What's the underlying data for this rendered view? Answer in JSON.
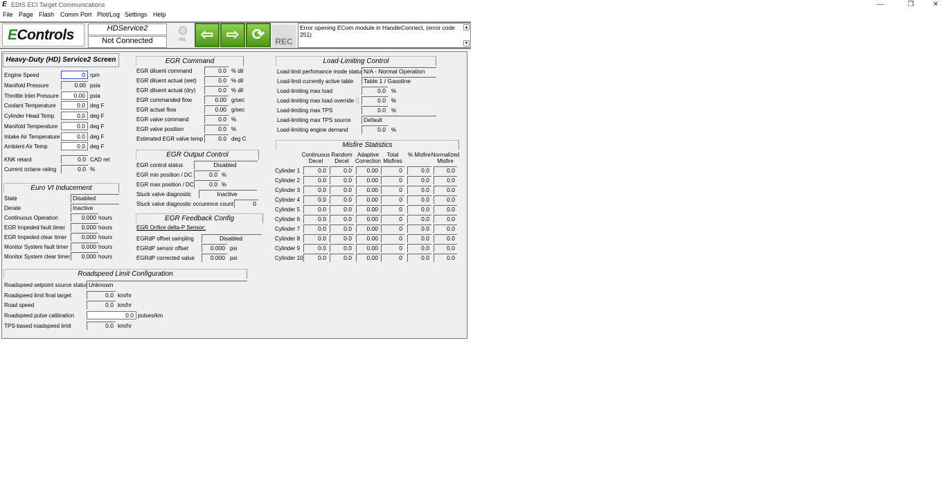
{
  "window": {
    "title": "EDIS ECI Target Communications",
    "controls": [
      "—",
      "❐",
      "✕"
    ]
  },
  "menu": [
    "File",
    "Page",
    "Flash",
    "Comm Port",
    "Plot/Log",
    "Settings",
    "Help"
  ],
  "toolbar": {
    "logo": "Controls",
    "service": "HDService2",
    "status": "Not Connected",
    "mil": "MIL",
    "rec": "REC",
    "error": "Error opening ECom module in HandleConnect, (error code 251)",
    "colors": {
      "accent": "#5aac22"
    },
    "icons": [
      "arrow-left-icon",
      "arrow-right-icon",
      "refresh-icon"
    ]
  },
  "screen_title": "Heavy-Duty (HD) Service2 Screen",
  "engine": [
    {
      "label": "Engine Speed",
      "value": "0",
      "unit": "rpm"
    },
    {
      "label": "Manifold Pressure",
      "value": "0.00",
      "unit": "psia"
    },
    {
      "label": "Throttle Inlet Pressure",
      "value": "0.00",
      "unit": "psia"
    },
    {
      "label": "Coolant Temperature",
      "value": "0.0",
      "unit": "deg F"
    },
    {
      "label": "Cylinder Head Temp",
      "value": "0.0",
      "unit": "deg F"
    },
    {
      "label": "Manifold Temperature",
      "value": "0.0",
      "unit": "deg F"
    },
    {
      "label": "Intake Air Temperature",
      "value": "0.0",
      "unit": "deg F"
    },
    {
      "label": "Ambient Air Temp",
      "value": "0.0",
      "unit": "deg F"
    },
    {
      "label": "KNK retard",
      "value": "0.0",
      "unit": "CAD ret"
    },
    {
      "label": "Current octane rating",
      "value": "0.0",
      "unit": "%"
    }
  ],
  "euro": {
    "title": "Euro VI Inducement",
    "rows": [
      {
        "label": "State",
        "value": "Disabled",
        "unit": ""
      },
      {
        "label": "Derate",
        "value": "Inactive",
        "unit": ""
      },
      {
        "label": "Continuous Operation",
        "value": "0.000",
        "unit": "hours"
      },
      {
        "label": "EGR Impeded fault timer",
        "value": "0.000",
        "unit": "hours"
      },
      {
        "label": "EGR Impeded clear timer",
        "value": "0.000",
        "unit": "hours"
      },
      {
        "label": "Monitor System fault timer",
        "value": "0.000",
        "unit": "hours"
      },
      {
        "label": "Monitor System clear timer",
        "value": "0.000",
        "unit": "hours"
      }
    ]
  },
  "egr_command": {
    "title": "EGR Command",
    "rows": [
      {
        "label": "EGR diluent command",
        "value": "0.0",
        "unit": "% dil"
      },
      {
        "label": "EGR diluent actual (wet)",
        "value": "0.0",
        "unit": "% dil"
      },
      {
        "label": "EGR diluent actual (dry)",
        "value": "0.0",
        "unit": "% dil"
      },
      {
        "label": "EGR commanded flow",
        "value": "0.00",
        "unit": "g/sec"
      },
      {
        "label": "EGR actual flow",
        "value": "0.00",
        "unit": "g/sec"
      },
      {
        "label": "EGR valve command",
        "value": "0.0",
        "unit": "%"
      },
      {
        "label": "EGR valve position",
        "value": "0.0",
        "unit": "%"
      },
      {
        "label": "Estimated EGR valve temp",
        "value": "0.0",
        "unit": "deg C"
      }
    ]
  },
  "egr_output": {
    "title": "EGR Output Control",
    "rows": [
      {
        "label": "EGR control status",
        "value": "Disabled",
        "unit": ""
      },
      {
        "label": "EGR min position / DC",
        "value": "0.0",
        "unit": "%"
      },
      {
        "label": "EGR max position / DC",
        "value": "0.0",
        "unit": "%"
      },
      {
        "label": "Stuck valve diagnostic",
        "value": "Inactive",
        "unit": ""
      },
      {
        "label": "Stuck valve diagnostic occurence count",
        "value": "0",
        "unit": ""
      }
    ]
  },
  "egr_feedback": {
    "title": "EGR Feedback Config",
    "subtitle": "EGR Orifice delta-P Sensor:",
    "rows": [
      {
        "label": "EGRdP offset sampling",
        "value": "Disabled",
        "unit": ""
      },
      {
        "label": "EGRdP sensor offset",
        "value": "0.000",
        "unit": "psi"
      },
      {
        "label": "EGRdP corrected value",
        "value": "0.000",
        "unit": "psi"
      }
    ]
  },
  "load_limit": {
    "title": "Load-Limiting Control",
    "rows": [
      {
        "label": "Load-limit perfomance mode status",
        "value": "N/A - Normal Operation",
        "unit": ""
      },
      {
        "label": "Load-limit currently active table",
        "value": "Table 1 / Gasoline",
        "unit": ""
      },
      {
        "label": "Load-limiting max load",
        "value": "0.0",
        "unit": "%"
      },
      {
        "label": "Load-limiting max load override",
        "value": "0.0",
        "unit": "%"
      },
      {
        "label": "Load-limiting max TPS",
        "value": "0.0",
        "unit": "%"
      },
      {
        "label": "Load-limiting max TPS source",
        "value": "Default",
        "unit": ""
      },
      {
        "label": "Load-limiting engine demand",
        "value": "0.0",
        "unit": "%"
      }
    ]
  },
  "misfire": {
    "title": "Misfire Statistics",
    "columns": [
      "Continuous Decel",
      "Random Decel",
      "Adaptive Correction",
      "Total Misfires",
      "% Misfire",
      "Normalized Misfire"
    ],
    "rows": [
      {
        "label": "Cylinder 1",
        "values": [
          "0.0",
          "0.0",
          "0.00",
          "0",
          "0.0",
          "0.0"
        ]
      },
      {
        "label": "Cylinder 2",
        "values": [
          "0.0",
          "0.0",
          "0.00",
          "0",
          "0.0",
          "0.0"
        ]
      },
      {
        "label": "Cylinder 3",
        "values": [
          "0.0",
          "0.0",
          "0.00",
          "0",
          "0.0",
          "0.0"
        ]
      },
      {
        "label": "Cylinder 4",
        "values": [
          "0.0",
          "0.0",
          "0.00",
          "0",
          "0.0",
          "0.0"
        ]
      },
      {
        "label": "Cylinder 5",
        "values": [
          "0.0",
          "0.0",
          "0.00",
          "0",
          "0.0",
          "0.0"
        ]
      },
      {
        "label": "Cylinder 6",
        "values": [
          "0.0",
          "0.0",
          "0.00",
          "0",
          "0.0",
          "0.0"
        ]
      },
      {
        "label": "Cylinder 7",
        "values": [
          "0.0",
          "0.0",
          "0.00",
          "0",
          "0.0",
          "0.0"
        ]
      },
      {
        "label": "Cylinder 8",
        "values": [
          "0.0",
          "0.0",
          "0.00",
          "0",
          "0.0",
          "0.0"
        ]
      },
      {
        "label": "Cylinder 9",
        "values": [
          "0.0",
          "0.0",
          "0.00",
          "0",
          "0.0",
          "0.0"
        ]
      },
      {
        "label": "Cylinder 10",
        "values": [
          "0.0",
          "0.0",
          "0.00",
          "0",
          "0.0",
          "0.0"
        ]
      }
    ]
  },
  "roadspeed": {
    "title": "Roadspeed Limit Configuration",
    "rows": [
      {
        "label": "Roadspeed setpoint source status",
        "value": "Unknown",
        "unit": ""
      },
      {
        "label": "Roadspeed limit final target",
        "value": "0.0",
        "unit": "km/hr"
      },
      {
        "label": "Road speed",
        "value": "0.0",
        "unit": "km/hr"
      },
      {
        "label": "Roadspeed pulse calibration",
        "value": "0.0",
        "unit": "pulses/km"
      },
      {
        "label": "TPS-based roadspeed limit",
        "value": "0.0",
        "unit": "km/hr"
      }
    ]
  }
}
